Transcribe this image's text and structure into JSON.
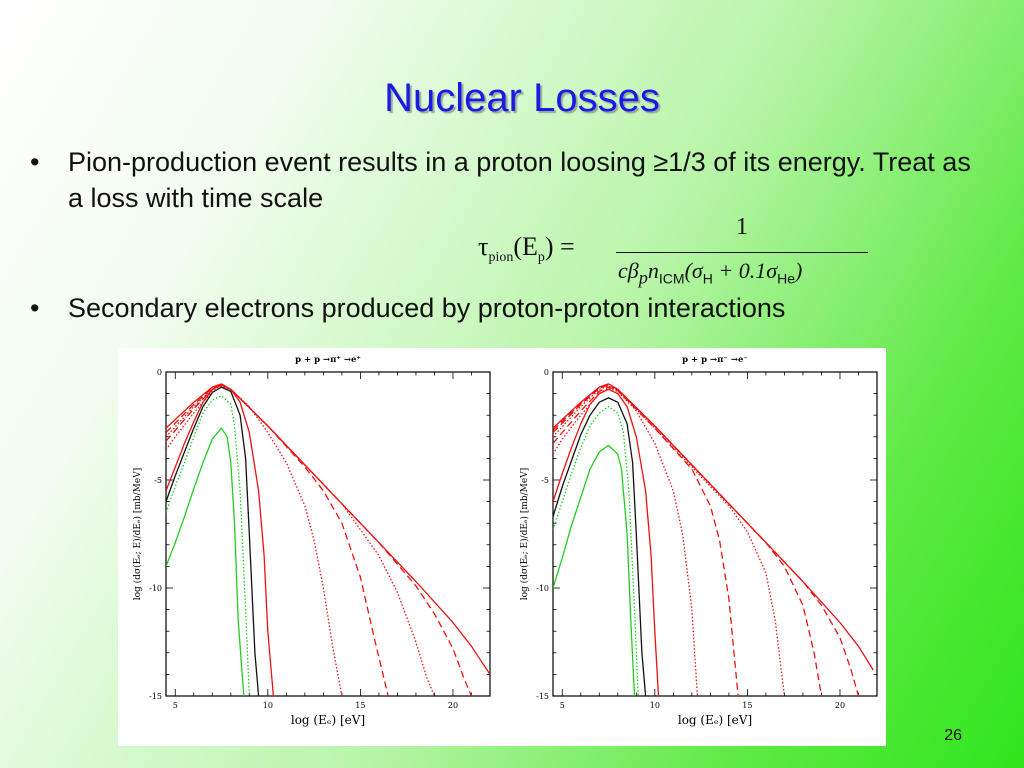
{
  "slide": {
    "title": "Nuclear Losses",
    "slide_number": "26"
  },
  "bullets": [
    {
      "symbol": "•",
      "text": "Pion-production event results in a proton loosing ≥1/3 of its energy.  Treat as a loss with time scale"
    },
    {
      "symbol": "•",
      "text": "Secondary electrons produced by proton-proton interactions"
    }
  ],
  "formula": {
    "lhs": "τ",
    "lhs_sub": "pion",
    "lhs_arg": "(E",
    "lhs_arg_sub": "p",
    "lhs_arg_close": ") =",
    "numerator": "1",
    "den_a": "cβ",
    "den_a_sub": "p",
    "den_b": "n",
    "den_b_sub": "ICM",
    "den_c": "(σ",
    "den_c_sub": "H",
    "den_d": " + 0.1σ",
    "den_d_sub": "He",
    "den_e": ")"
  },
  "chart_data": [
    {
      "type": "line",
      "title": "p + p →π⁺ →e⁺",
      "xlabel": "log (Eₑ) [eV]",
      "ylabel": "log (dσ(Eₑ; E)/dEₑ) [mb/MeV]",
      "xlim": [
        4.5,
        22
      ],
      "ylim": [
        -15,
        0
      ],
      "x_ticks": [
        "5",
        "10",
        "15",
        "20"
      ],
      "y_ticks": [
        "0",
        "-5",
        "-10",
        "-15"
      ],
      "series": [
        {
          "color": "#22cc22",
          "style": "solid",
          "x": [
            4.5,
            5,
            5.5,
            6,
            6.5,
            7,
            7.5,
            7.8,
            8,
            8.2,
            8.4,
            8.7
          ],
          "y": [
            -9.0,
            -7.9,
            -6.7,
            -5.4,
            -4.2,
            -3.1,
            -2.6,
            -3.0,
            -4.2,
            -7.0,
            -11.5,
            -15
          ]
        },
        {
          "color": "#22cc22",
          "style": "dotted",
          "x": [
            4.5,
            5,
            5.5,
            6,
            6.5,
            7,
            7.5,
            8,
            8.2,
            8.5,
            8.8,
            9.0
          ],
          "y": [
            -6.5,
            -5.3,
            -4.2,
            -3.0,
            -1.9,
            -1.3,
            -1.1,
            -1.5,
            -2.5,
            -5.5,
            -11,
            -15
          ]
        },
        {
          "color": "#111111",
          "style": "solid",
          "x": [
            4.5,
            5,
            5.5,
            6,
            6.5,
            7,
            7.5,
            8,
            8.5,
            8.8,
            9.0,
            9.3,
            9.5
          ],
          "y": [
            -6.0,
            -4.8,
            -3.7,
            -2.6,
            -1.6,
            -0.95,
            -0.7,
            -0.9,
            -2.0,
            -4.0,
            -7.5,
            -13,
            -15
          ]
        },
        {
          "color": "#ee1111",
          "style": "solid",
          "x": [
            4.5,
            5,
            5.5,
            6,
            6.5,
            7,
            7.5,
            8,
            8.5,
            9,
            9.5,
            9.8,
            10.0,
            10.3
          ],
          "y": [
            -5.5,
            -4.4,
            -3.3,
            -2.3,
            -1.4,
            -0.8,
            -0.6,
            -0.8,
            -1.4,
            -2.8,
            -5.5,
            -8.5,
            -12,
            -15
          ]
        },
        {
          "color": "#ee1111",
          "style": "dotted",
          "x": [
            4.5,
            5,
            6,
            7,
            7.5,
            8,
            9,
            10,
            11,
            12,
            12.5,
            13,
            13.5,
            14.0
          ],
          "y": [
            -3.6,
            -3.0,
            -1.9,
            -0.9,
            -0.65,
            -0.8,
            -1.6,
            -2.8,
            -4.2,
            -6.2,
            -7.8,
            -10,
            -12.7,
            -15
          ]
        },
        {
          "color": "#ee1111",
          "style": "dashed",
          "x": [
            4.5,
            5,
            6,
            7,
            7.5,
            8,
            10,
            12,
            13,
            14,
            15,
            15.8,
            16.5
          ],
          "y": [
            -3.2,
            -2.7,
            -1.7,
            -0.8,
            -0.6,
            -0.8,
            -2.5,
            -4.4,
            -5.5,
            -7.0,
            -9.5,
            -12.5,
            -15
          ]
        },
        {
          "color": "#ee1111",
          "style": "dotted",
          "x": [
            4.5,
            6,
            7,
            7.5,
            8,
            10,
            12,
            14,
            16,
            17,
            18,
            18.6,
            19.0
          ],
          "y": [
            -3.0,
            -1.6,
            -0.8,
            -0.6,
            -0.8,
            -2.5,
            -4.3,
            -6.1,
            -8.5,
            -10.2,
            -12.5,
            -14.2,
            -15
          ]
        },
        {
          "color": "#ee1111",
          "style": "dashed",
          "x": [
            4.5,
            6,
            7,
            7.5,
            8,
            10,
            12,
            14,
            16,
            18,
            19,
            20,
            20.6,
            21.0
          ],
          "y": [
            -2.8,
            -1.5,
            -0.75,
            -0.6,
            -0.8,
            -2.5,
            -4.3,
            -6.1,
            -7.9,
            -9.9,
            -11.2,
            -12.8,
            -14.2,
            -15
          ]
        },
        {
          "color": "#ee1111",
          "style": "solid",
          "x": [
            4.5,
            6,
            7,
            7.5,
            8,
            10,
            12,
            14,
            16,
            18,
            20,
            21,
            22
          ],
          "y": [
            -2.6,
            -1.4,
            -0.7,
            -0.55,
            -0.8,
            -2.5,
            -4.3,
            -6.1,
            -7.9,
            -9.7,
            -11.6,
            -12.7,
            -14.0
          ]
        }
      ]
    },
    {
      "type": "line",
      "title": "p + p →π⁻ →e⁻",
      "xlabel": "log (Eₑ) [eV]",
      "ylabel": "log (dσ(Eₑ; E)/dEₑ) [mb/MeV]",
      "xlim": [
        4.5,
        22
      ],
      "ylim": [
        -15,
        0
      ],
      "x_ticks": [
        "5",
        "10",
        "15",
        "20"
      ],
      "y_ticks": [
        "0",
        "-5",
        "-10",
        "-15"
      ],
      "series": [
        {
          "color": "#22cc22",
          "style": "solid",
          "x": [
            4.5,
            5,
            5.5,
            6,
            6.5,
            7,
            7.5,
            8,
            8.2,
            8.5,
            8.7,
            8.9
          ],
          "y": [
            -10.0,
            -8.6,
            -7.1,
            -5.8,
            -4.5,
            -3.7,
            -3.4,
            -3.8,
            -4.5,
            -7.5,
            -11.5,
            -15
          ]
        },
        {
          "color": "#22cc22",
          "style": "dotted",
          "x": [
            4.5,
            5,
            5.5,
            6,
            6.5,
            7,
            7.5,
            8,
            8.3,
            8.6,
            8.9,
            9.1
          ],
          "y": [
            -7.3,
            -6.0,
            -4.7,
            -3.5,
            -2.5,
            -1.9,
            -1.6,
            -1.9,
            -2.8,
            -5.5,
            -11,
            -15
          ]
        },
        {
          "color": "#111111",
          "style": "solid",
          "x": [
            4.5,
            5,
            5.5,
            6,
            6.5,
            7,
            7.5,
            8,
            8.5,
            8.8,
            9.0,
            9.3,
            9.5
          ],
          "y": [
            -6.7,
            -5.3,
            -4.1,
            -2.9,
            -2.0,
            -1.4,
            -1.2,
            -1.4,
            -2.4,
            -4.2,
            -7.5,
            -13,
            -15
          ]
        },
        {
          "color": "#ee1111",
          "style": "solid",
          "x": [
            4.5,
            5,
            5.5,
            6,
            6.5,
            7,
            7.5,
            8,
            8.5,
            9,
            9.5,
            9.8,
            10.0,
            10.2
          ],
          "y": [
            -6.0,
            -4.7,
            -3.5,
            -2.4,
            -1.5,
            -1.0,
            -0.8,
            -1.0,
            -1.6,
            -3.0,
            -5.5,
            -8.5,
            -12,
            -15
          ]
        },
        {
          "color": "#ee1111",
          "style": "dotted",
          "x": [
            4.5,
            5,
            6,
            7,
            7.5,
            8,
            9,
            10,
            11,
            11.5,
            12,
            12.3
          ],
          "y": [
            -3.8,
            -3.1,
            -2.0,
            -1.0,
            -0.75,
            -0.9,
            -1.8,
            -3.3,
            -5.5,
            -7.5,
            -11,
            -15
          ]
        },
        {
          "color": "#ee1111",
          "style": "dashed",
          "x": [
            4.5,
            5,
            6,
            7,
            7.5,
            8,
            10,
            12,
            13,
            13.5,
            14,
            14.5
          ],
          "y": [
            -3.3,
            -2.8,
            -1.8,
            -0.9,
            -0.7,
            -0.85,
            -2.6,
            -4.5,
            -6.2,
            -7.8,
            -10.5,
            -15
          ]
        },
        {
          "color": "#ee1111",
          "style": "dotted",
          "x": [
            4.5,
            6,
            7,
            7.5,
            8,
            10,
            12,
            14,
            15,
            16,
            16.5,
            17.0
          ],
          "y": [
            -3.0,
            -1.6,
            -0.8,
            -0.65,
            -0.85,
            -2.6,
            -4.4,
            -6.2,
            -7.4,
            -9.3,
            -11.5,
            -15
          ]
        },
        {
          "color": "#ee1111",
          "style": "dashed",
          "x": [
            4.5,
            6,
            7,
            7.5,
            8,
            10,
            12,
            14,
            16,
            17,
            18,
            18.6,
            19.0
          ],
          "y": [
            -2.8,
            -1.5,
            -0.75,
            -0.6,
            -0.8,
            -2.5,
            -4.3,
            -6.1,
            -7.9,
            -9.0,
            -10.8,
            -13,
            -15
          ]
        },
        {
          "color": "#ee1111",
          "style": "dashed",
          "x": [
            4.5,
            6,
            7,
            7.5,
            8,
            10,
            12,
            14,
            16,
            18,
            19,
            20,
            20.6,
            21.0
          ],
          "y": [
            -2.7,
            -1.45,
            -0.7,
            -0.58,
            -0.8,
            -2.5,
            -4.3,
            -6.1,
            -7.9,
            -9.7,
            -10.8,
            -12.3,
            -13.8,
            -15
          ]
        },
        {
          "color": "#ee1111",
          "style": "solid",
          "x": [
            4.5,
            6,
            7,
            7.5,
            8,
            10,
            12,
            14,
            16,
            18,
            20,
            21,
            21.8
          ],
          "y": [
            -2.6,
            -1.4,
            -0.7,
            -0.55,
            -0.8,
            -2.5,
            -4.3,
            -6.1,
            -7.9,
            -9.7,
            -11.6,
            -12.7,
            -13.8
          ]
        }
      ]
    }
  ]
}
